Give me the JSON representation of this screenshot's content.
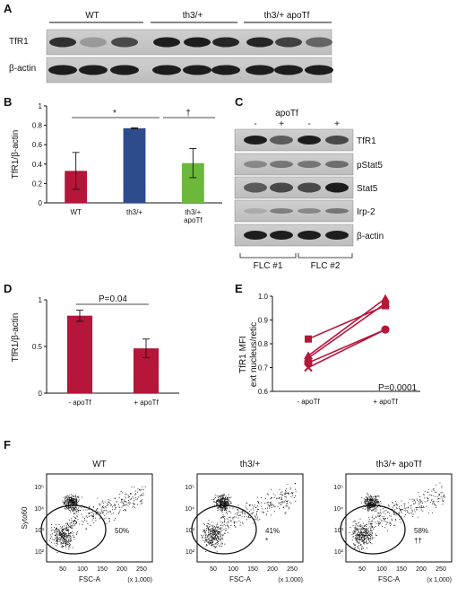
{
  "panels": {
    "A": {
      "letter": "A",
      "groups": [
        "WT",
        "th3/+",
        "th3/+ apoTf"
      ],
      "rows": [
        "TfR1",
        "β-actin"
      ]
    },
    "B": {
      "letter": "B",
      "ylabel": "TfR1/β-actin",
      "sig1": "*",
      "sig2": "†"
    },
    "C": {
      "letter": "C",
      "treatment": "apoTf",
      "lane_signs": [
        "-",
        "+",
        "-",
        "+"
      ],
      "rows": [
        "TfR1",
        "pStat5",
        "Stat5",
        "Irp-2",
        "β-actin"
      ],
      "groups": [
        "FLC #1",
        "FLC #2"
      ]
    },
    "D": {
      "letter": "D",
      "ylabel": "TfR1/β-actin",
      "pvalue": "P=0.04"
    },
    "E": {
      "letter": "E",
      "ylabel_line1": "TfR1 MFI",
      "ylabel_line2": "ext nucleus/retic",
      "pvalue": "P=0.0001"
    },
    "F": {
      "letter": "F",
      "ylabel": "Syto60",
      "xlabel": "FSC-A",
      "xunit": "(x 1,000)",
      "plots": [
        {
          "title": "WT",
          "percent": "50%",
          "mark": ""
        },
        {
          "title": "th3/+",
          "percent": "41%",
          "mark": "*"
        },
        {
          "title": "th3/+ apoTf",
          "percent": "58%",
          "mark": "††"
        }
      ],
      "yticks": [
        "10²",
        "10³",
        "10⁴",
        "10⁵"
      ],
      "xticks": [
        "50",
        "100",
        "150",
        "200",
        "250"
      ]
    }
  },
  "chart_data": [
    {
      "type": "bar",
      "panel": "B",
      "categories": [
        "WT",
        "th3/+",
        "th3/+\napoTf"
      ],
      "values": [
        0.33,
        0.77,
        0.41
      ],
      "errors": [
        0.19,
        0.005,
        0.15
      ],
      "colors": [
        "#b5163a",
        "#2e4b8c",
        "#6bb83a"
      ],
      "ylabel": "TfR1/β-actin",
      "ylim": [
        0,
        1
      ],
      "yticks": [
        0,
        0.2,
        0.4,
        0.6,
        0.8,
        1
      ]
    },
    {
      "type": "bar",
      "panel": "D",
      "categories": [
        "- apoTf",
        "+ apoTf"
      ],
      "values": [
        0.83,
        0.48
      ],
      "errors": [
        0.06,
        0.1
      ],
      "colors": [
        "#b5163a",
        "#b5163a"
      ],
      "ylabel": "TfR1/β-actin",
      "ylim": [
        0,
        1
      ],
      "yticks": [
        0,
        0.5,
        1
      ]
    },
    {
      "type": "line",
      "panel": "E",
      "categories": [
        "- apoTf",
        "+ apoTf"
      ],
      "series": [
        {
          "values": [
            0.82,
            0.96
          ],
          "marker": "square"
        },
        {
          "values": [
            0.75,
            0.99
          ],
          "marker": "triangle"
        },
        {
          "values": [
            0.74,
            0.97
          ],
          "marker": "triangle"
        },
        {
          "values": [
            0.72,
            0.86
          ],
          "marker": "diamond"
        },
        {
          "values": [
            0.7,
            0.86
          ],
          "marker": "x"
        }
      ],
      "color": "#b5163a",
      "ylabel": "TfR1 MFI ext nucleus/retic",
      "ylim": [
        0.6,
        1.0
      ],
      "yticks": [
        0.6,
        0.7,
        0.8,
        0.9,
        1.0
      ]
    }
  ]
}
